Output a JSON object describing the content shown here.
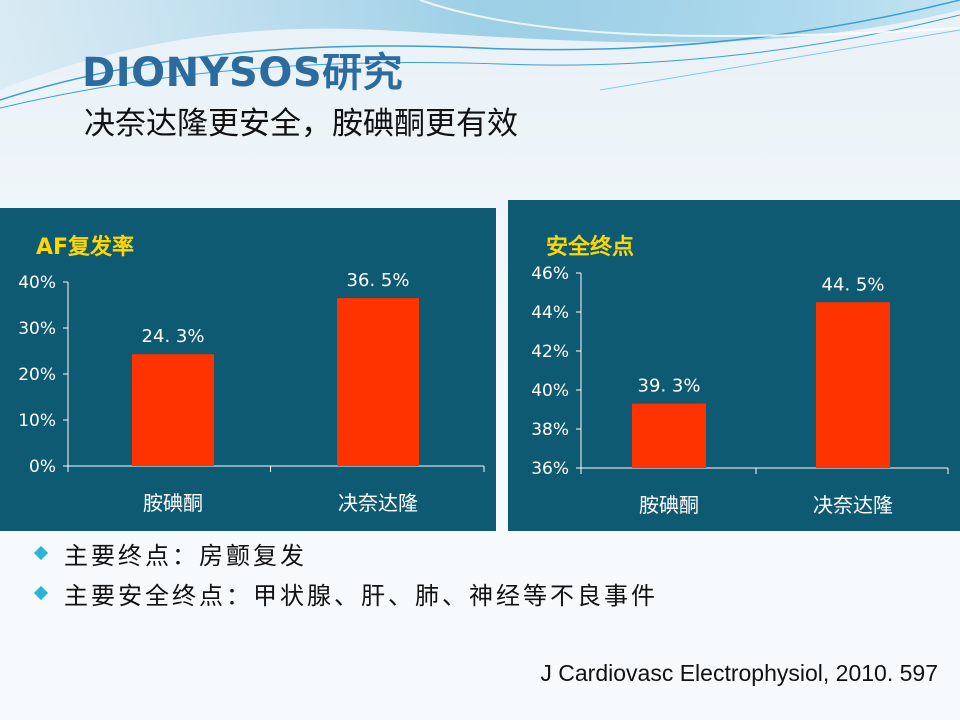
{
  "slide": {
    "title": "DIONYSOS研究",
    "subtitle": "决奈达隆更安全，胺碘酮更有效",
    "bullets": [
      "主要终点：房颤复发",
      "主要安全终点：甲状腺、肝、肺、神经等不良事件"
    ],
    "citation": "J Cardiovasc Electrophysiol, 2010. 597"
  },
  "colors": {
    "panel_bg": "#0f5a73",
    "bar": "#ff3300",
    "title": "#2b6b9e",
    "chart_title": "#ffd700",
    "bullet": "#29b4d8"
  },
  "chart_data": [
    {
      "type": "bar",
      "title": "AF复发率",
      "categories": [
        "胺碘酮",
        "决奈达隆"
      ],
      "values": [
        24.3,
        36.5
      ],
      "value_labels": [
        "24. 3%",
        "36. 5%"
      ],
      "ylim": [
        0,
        40
      ],
      "yticks": [
        0,
        10,
        20,
        30,
        40
      ],
      "ytick_labels": [
        "0%",
        "10%",
        "20%",
        "30%",
        "40%"
      ],
      "grid": false
    },
    {
      "type": "bar",
      "title": "安全终点",
      "categories": [
        "胺碘酮",
        "决奈达隆"
      ],
      "values": [
        39.3,
        44.5
      ],
      "value_labels": [
        "39. 3%",
        "44. 5%"
      ],
      "ylim": [
        36,
        46
      ],
      "yticks": [
        36,
        38,
        40,
        42,
        44,
        46
      ],
      "ytick_labels": [
        "36%",
        "38%",
        "40%",
        "42%",
        "44%",
        "46%"
      ],
      "grid": false
    }
  ]
}
